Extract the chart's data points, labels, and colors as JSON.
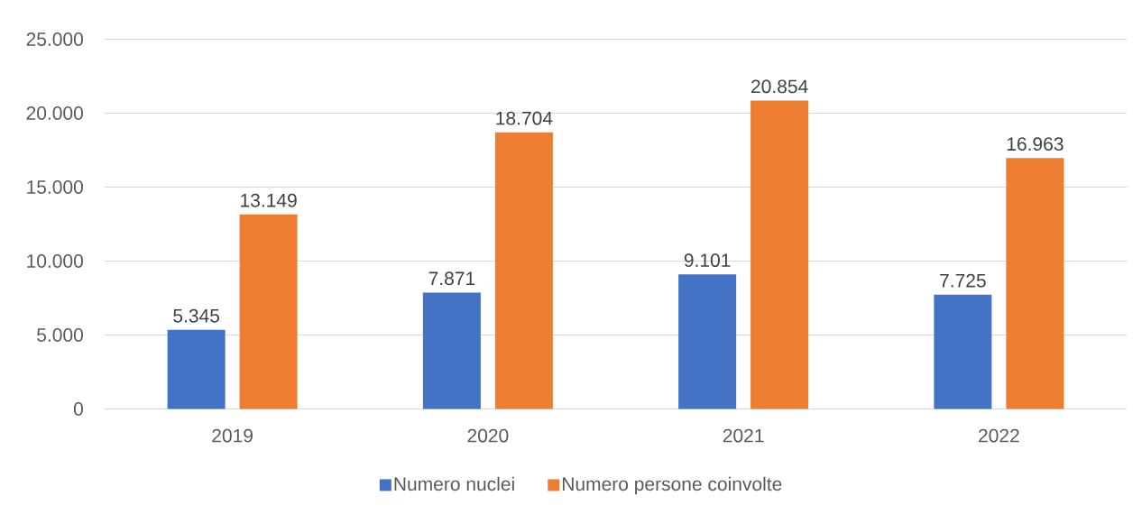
{
  "chart_data": {
    "type": "bar",
    "categories": [
      "2019",
      "2020",
      "2021",
      "2022"
    ],
    "series": [
      {
        "name": "Numero nuclei",
        "color": "#4472c4",
        "values": [
          5345,
          7871,
          9101,
          7725
        ],
        "value_labels": [
          "5.345",
          "7.871",
          "9.101",
          "7.725"
        ]
      },
      {
        "name": "Numero persone coinvolte",
        "color": "#ed7d31",
        "values": [
          13149,
          18704,
          20854,
          16963
        ],
        "value_labels": [
          "13.149",
          "18.704",
          "20.854",
          "16.963"
        ]
      }
    ],
    "ylim": [
      0,
      25000
    ],
    "yticks": [
      0,
      {
        "value": 5000,
        "label": "5.000"
      },
      {
        "value": 10000,
        "label": "10.000"
      },
      {
        "value": 15000,
        "label": "15.000"
      },
      {
        "value": 20000,
        "label": "20.000"
      },
      {
        "value": 25000,
        "label": "25.000"
      }
    ],
    "grid": "y",
    "legend": "bottom"
  }
}
